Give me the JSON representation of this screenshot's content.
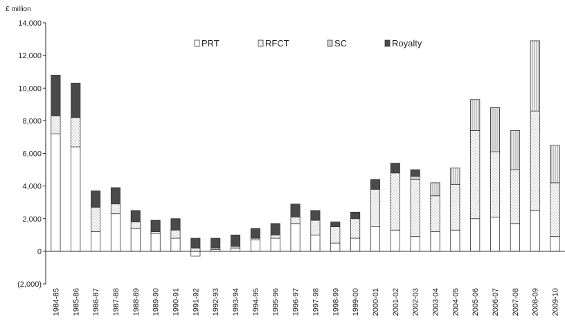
{
  "chart_data": {
    "type": "bar",
    "stacked": true,
    "unit_label": "£ million",
    "ylim": [
      -2000,
      14000
    ],
    "yticks": [
      -2000,
      0,
      2000,
      4000,
      6000,
      8000,
      10000,
      12000,
      14000
    ],
    "ytick_labels": [
      "(2,000)",
      "0",
      "2,000",
      "4,000",
      "6,000",
      "8,000",
      "10,000",
      "12,000",
      "14,000"
    ],
    "grid": false,
    "legend_position": "top-center",
    "categories": [
      "1984-85",
      "1985-86",
      "1986-87",
      "1987-88",
      "1988-89",
      "1989-90",
      "1990-91",
      "1991-92",
      "1992-93",
      "1993-94",
      "1994-95",
      "1995-96",
      "1996-97",
      "1997-98",
      "1998-99",
      "1999-00",
      "2000-01",
      "2001-02",
      "2002-03",
      "2003-04",
      "2004-05",
      "2005-06",
      "2006-07",
      "2007-08",
      "2008-09",
      "2009-10"
    ],
    "series": [
      {
        "name": "PRT",
        "color": "#ffffff",
        "pattern": "none",
        "values": [
          7200,
          6400,
          1200,
          2300,
          1400,
          1100,
          800,
          -300,
          100,
          200,
          700,
          800,
          1700,
          1000,
          500,
          800,
          1500,
          1300,
          900,
          1200,
          1300,
          2000,
          2100,
          1700,
          2500,
          900
        ]
      },
      {
        "name": "RFCT",
        "color": "#ffffff",
        "pattern": "dots",
        "values": [
          1100,
          1800,
          1500,
          600,
          400,
          100,
          500,
          200,
          100,
          100,
          100,
          200,
          400,
          900,
          1000,
          1200,
          2300,
          3500,
          3500,
          2200,
          2800,
          5400,
          4000,
          3300,
          6100,
          3300
        ]
      },
      {
        "name": "SC",
        "color": "#e6e6e6",
        "pattern": "vlines",
        "values": [
          0,
          0,
          0,
          0,
          0,
          0,
          0,
          0,
          0,
          0,
          0,
          0,
          0,
          0,
          0,
          0,
          0,
          0,
          200,
          800,
          1000,
          1900,
          2700,
          2400,
          4300,
          2300
        ]
      },
      {
        "name": "Royalty",
        "color": "#4a4a4a",
        "pattern": "solid",
        "values": [
          2500,
          2100,
          1000,
          1000,
          700,
          700,
          700,
          600,
          600,
          700,
          600,
          700,
          800,
          600,
          300,
          400,
          600,
          600,
          400,
          0,
          0,
          0,
          0,
          0,
          0,
          0
        ]
      }
    ]
  }
}
